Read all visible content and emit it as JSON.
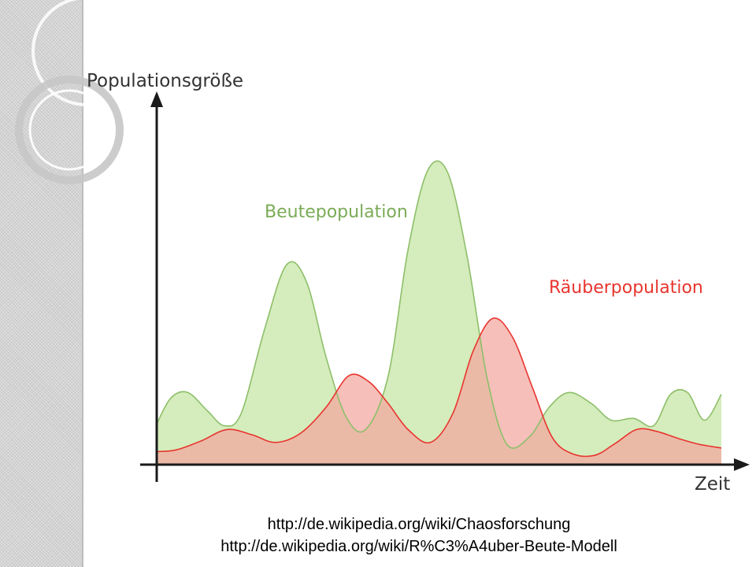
{
  "source_links": [
    "http://de.wikipedia.org/wiki/Chaosforschung",
    "http://de.wikipedia.org/wiki/R%C3%A4uber-Beute-Modell"
  ],
  "colors": {
    "prey_fill": "#d5ecbc",
    "prey_line": "#8dbf6a",
    "prey_label": "#7aab56",
    "predator_fill": "#f2a69f",
    "predator_line": "#e8352e",
    "predator_label": "#e8352e",
    "axis": "#1a1a1a"
  },
  "chart_data": {
    "type": "area",
    "title": "",
    "ylabel": "Populationsgröße",
    "xlabel": "Zeit",
    "xlim": [
      0,
      10
    ],
    "ylim": [
      0,
      10
    ],
    "axis_ticks": false,
    "grid": false,
    "legend": "inline labels",
    "series": [
      {
        "name": "Beutepopulation",
        "x": [
          0,
          0.25,
          0.55,
          0.9,
          1.2,
          1.5,
          1.9,
          2.3,
          2.65,
          3.0,
          3.35,
          3.7,
          4.1,
          4.45,
          4.8,
          5.15,
          5.5,
          5.85,
          6.2,
          6.6,
          6.95,
          7.3,
          7.7,
          8.05,
          8.45,
          8.8,
          9.1,
          9.4,
          9.7,
          10.0
        ],
        "values": [
          1.1,
          1.8,
          1.95,
          1.45,
          1.05,
          1.4,
          3.6,
          5.4,
          4.95,
          2.9,
          1.3,
          0.95,
          2.4,
          5.8,
          7.95,
          7.9,
          5.6,
          2.35,
          0.55,
          0.75,
          1.55,
          1.95,
          1.65,
          1.2,
          1.25,
          1.05,
          1.9,
          1.95,
          1.2,
          1.9
        ]
      },
      {
        "name": "Räuberpopulation",
        "x": [
          0,
          0.35,
          0.8,
          1.25,
          1.7,
          2.1,
          2.55,
          3.0,
          3.4,
          3.75,
          4.1,
          4.45,
          4.85,
          5.25,
          5.6,
          5.95,
          6.3,
          6.65,
          7.0,
          7.35,
          7.75,
          8.1,
          8.5,
          8.85,
          9.25,
          9.6,
          10.0
        ],
        "values": [
          0.35,
          0.4,
          0.65,
          0.95,
          0.8,
          0.6,
          0.85,
          1.55,
          2.4,
          2.25,
          1.65,
          0.95,
          0.6,
          1.4,
          3.05,
          3.95,
          3.45,
          2.1,
          0.75,
          0.3,
          0.25,
          0.55,
          0.95,
          0.9,
          0.7,
          0.55,
          0.45
        ]
      }
    ],
    "annotations": [
      {
        "text": "Beutepopulation",
        "series": "Beutepopulation"
      },
      {
        "text": "Räuberpopulation",
        "series": "Räuberpopulation"
      }
    ]
  }
}
